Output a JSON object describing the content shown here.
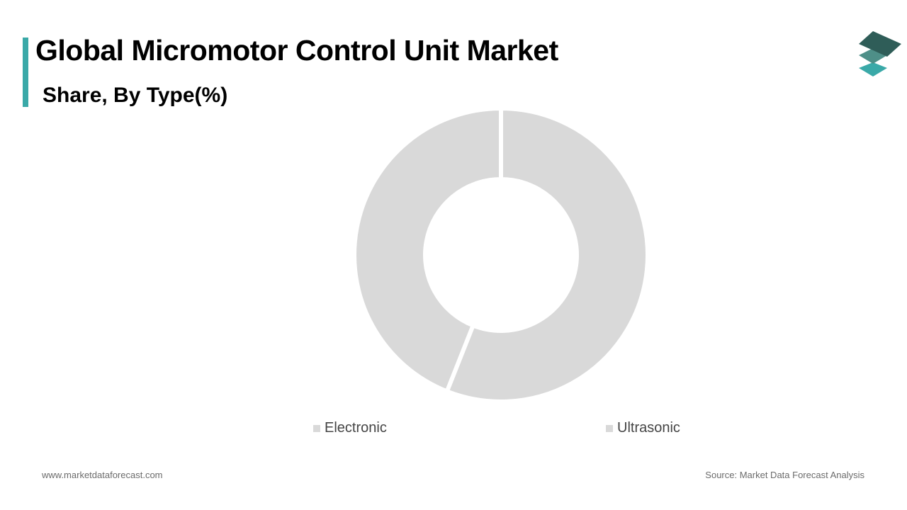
{
  "header": {
    "title": "Global Micromotor Control Unit Market",
    "subtitle": "Share, By Type(%)"
  },
  "brand": {
    "accent_color": "#3aa9a8",
    "logo_icon": "layered-stack-logo-icon",
    "logo_colors": [
      "#2f5d58",
      "#4e8f88",
      "#3aa9a8"
    ]
  },
  "chart_data": {
    "type": "pie",
    "donut": true,
    "categories": [
      "Electronic",
      "Ultrasonic"
    ],
    "values": [
      56,
      44
    ],
    "colors": [
      "#d9d9d9",
      "#d9d9d9"
    ],
    "legend_position": "bottom"
  },
  "footer": {
    "website": "www.marketdataforecast.com",
    "source": "Source: Market Data Forecast Analysis"
  }
}
